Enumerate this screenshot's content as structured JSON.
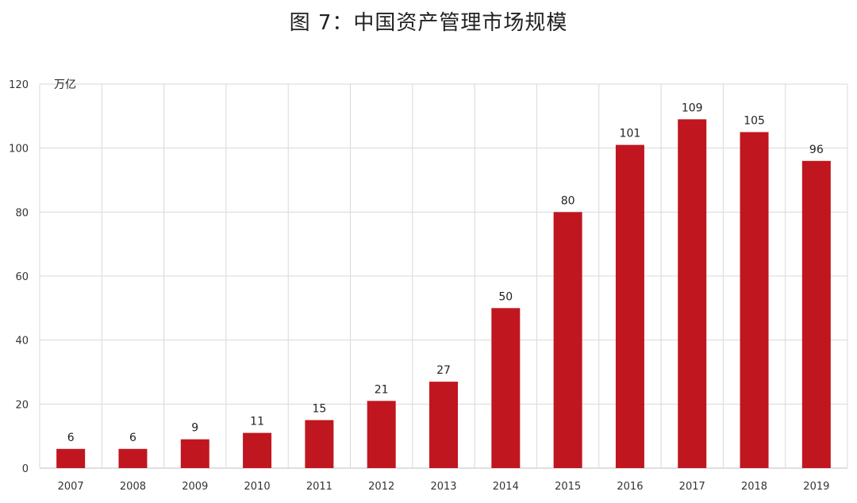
{
  "chart_data": {
    "type": "bar",
    "title": "图 7：中国资产管理市场规模",
    "ylabel": "万亿",
    "xlabel": "",
    "categories": [
      "2007",
      "2008",
      "2009",
      "2010",
      "2011",
      "2012",
      "2013",
      "2014",
      "2015",
      "2016",
      "2017",
      "2018",
      "2019"
    ],
    "values": [
      6,
      6,
      9,
      11,
      15,
      21,
      27,
      50,
      80,
      101,
      109,
      105,
      96
    ],
    "ylim": [
      0,
      120
    ],
    "yticks": [
      0,
      20,
      40,
      60,
      80,
      100,
      120
    ],
    "grid": true,
    "legend": "none",
    "bar_color": "#c0161f"
  }
}
